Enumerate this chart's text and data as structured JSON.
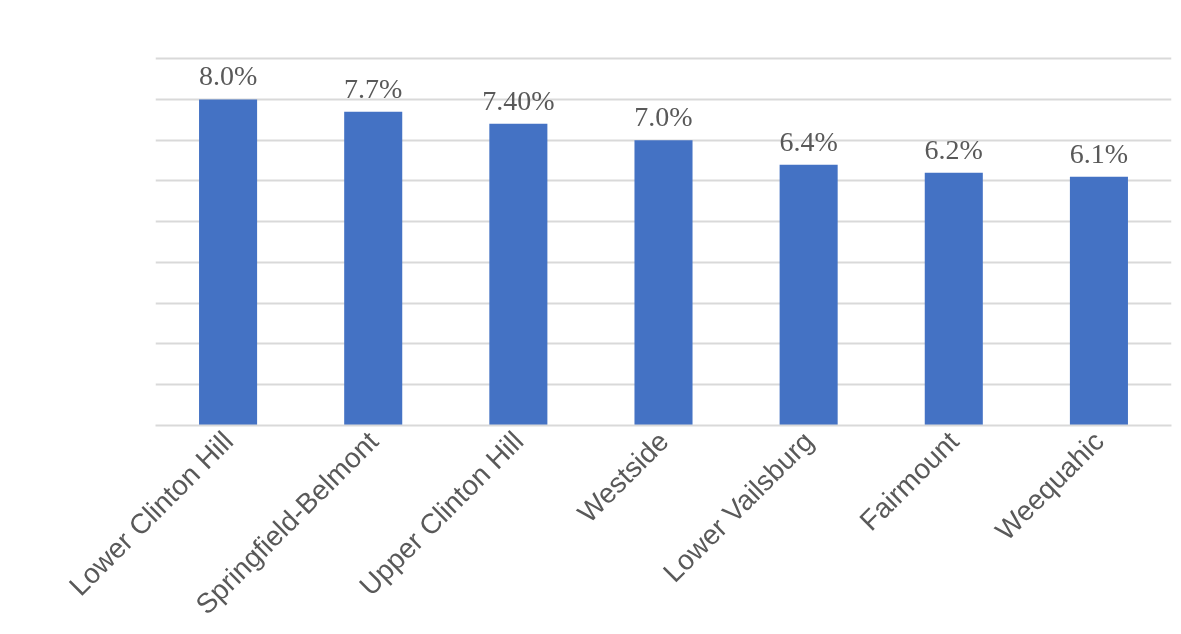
{
  "chart_data": {
    "type": "bar",
    "categories": [
      "Lower Clinton Hill",
      "Springfield-Belmont",
      "Upper Clinton Hill",
      "Westside",
      "Lower Vailsburg",
      "Fairmount",
      "Weequahic"
    ],
    "values": [
      8.0,
      7.7,
      7.4,
      7.0,
      6.4,
      6.2,
      6.1
    ],
    "value_labels": [
      "8.0%",
      "7.7%",
      "7.40%",
      "7.0%",
      "6.4%",
      "6.2%",
      "6.1%"
    ],
    "color": "#4472c4",
    "tick_labels": "x",
    "grid": "y"
  }
}
